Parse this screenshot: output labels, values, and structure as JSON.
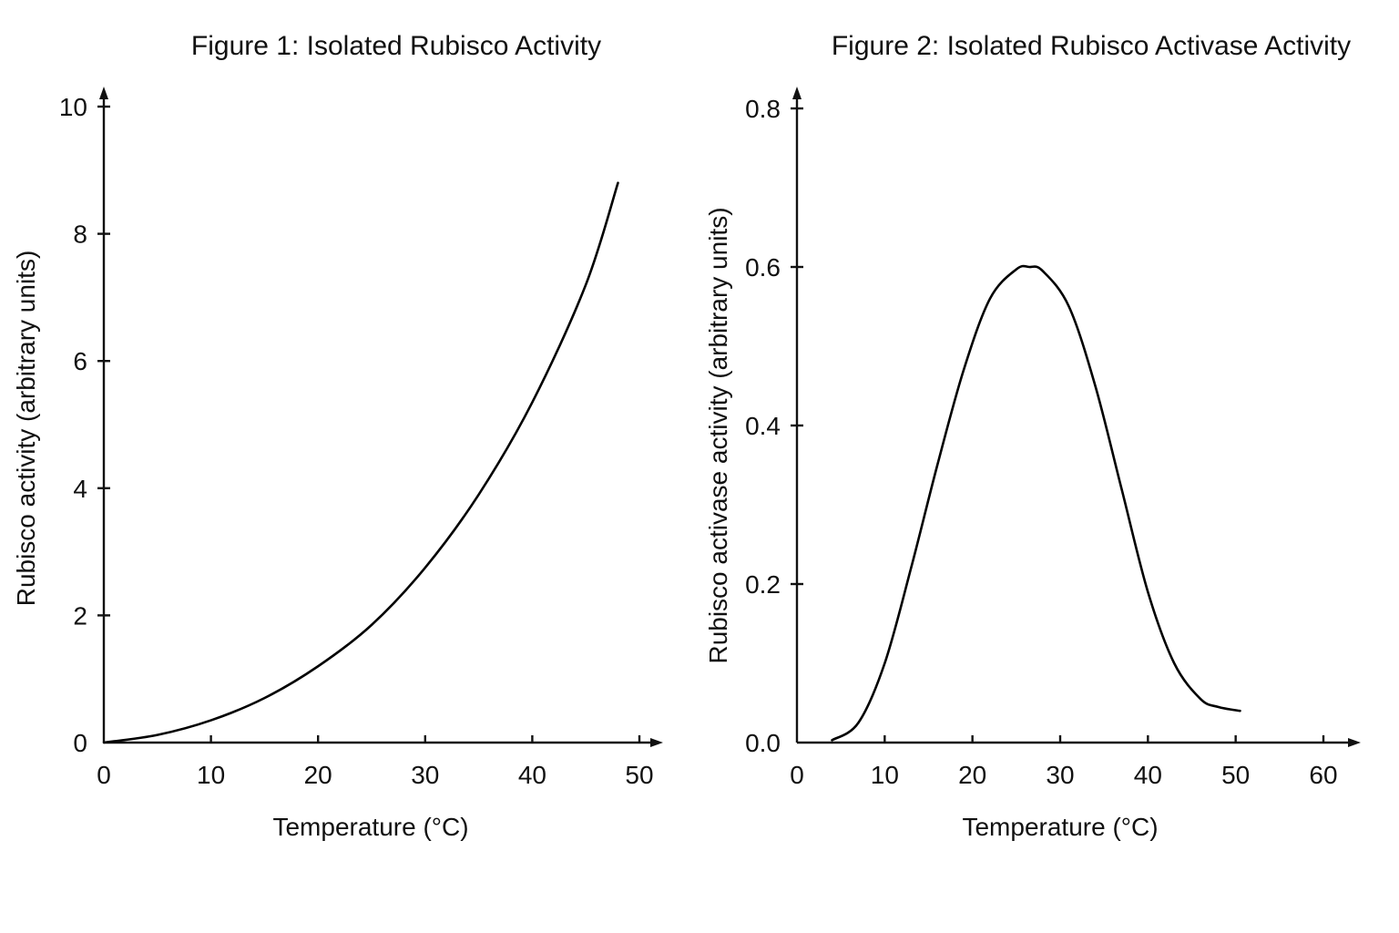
{
  "chart_data": [
    {
      "type": "line",
      "title": "Figure 1: Isolated Rubisco Activity",
      "xlabel": "Temperature (°C)",
      "ylabel": "Rubisco activity (arbitrary units)",
      "xlim": [
        0,
        50
      ],
      "ylim": [
        0,
        10
      ],
      "x_ticks": [
        "0",
        "10",
        "20",
        "30",
        "40",
        "50"
      ],
      "y_ticks": [
        "0",
        "2",
        "4",
        "6",
        "8",
        "10"
      ],
      "grid": false,
      "series": [
        {
          "x": [
            0,
            5,
            10,
            15,
            20,
            25,
            30,
            35,
            40,
            45,
            48
          ],
          "values": [
            0,
            0.12,
            0.35,
            0.7,
            1.2,
            1.85,
            2.75,
            3.9,
            5.35,
            7.2,
            8.8
          ]
        }
      ]
    },
    {
      "type": "line",
      "title": "Figure 2: Isolated Rubisco Activase Activity",
      "xlabel": "Temperature (°C)",
      "ylabel": "Rubisco activase activity (arbitrary units)",
      "xlim": [
        0,
        60
      ],
      "ylim": [
        0,
        0.8
      ],
      "x_ticks": [
        "0",
        "10",
        "20",
        "30",
        "40",
        "50",
        "60"
      ],
      "y_ticks": [
        "0.0",
        "0.2",
        "0.4",
        "0.6",
        "0.8"
      ],
      "grid": false,
      "series": [
        {
          "x": [
            4,
            7,
            10,
            13,
            16,
            19,
            22,
            25,
            26.5,
            28,
            31,
            34,
            37,
            40,
            43,
            46,
            48,
            50.5
          ],
          "values": [
            0.003,
            0.025,
            0.1,
            0.22,
            0.35,
            0.47,
            0.56,
            0.597,
            0.6,
            0.595,
            0.55,
            0.45,
            0.32,
            0.19,
            0.1,
            0.055,
            0.045,
            0.04
          ]
        }
      ]
    }
  ]
}
